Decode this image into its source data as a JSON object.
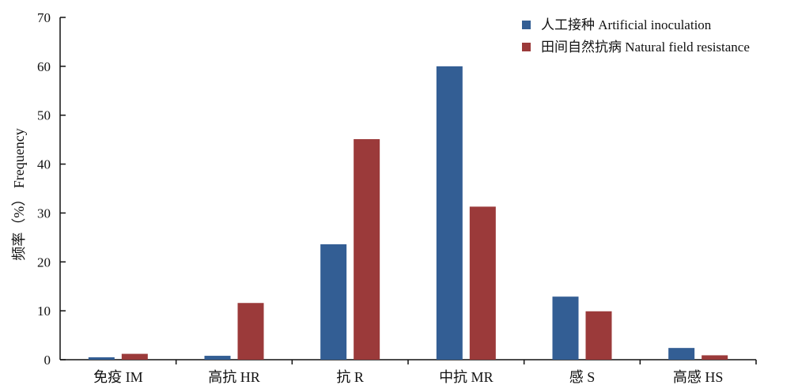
{
  "chart_data": {
    "type": "bar",
    "categories": [
      "免疫 IM",
      "高抗 HR",
      "抗 R",
      "中抗 MR",
      "感 S",
      "高感 HS"
    ],
    "series": [
      {
        "name": "人工接种 Artificial inoculation",
        "color": "#335e94",
        "values": [
          0.5,
          0.8,
          23.6,
          60.0,
          12.9,
          2.4
        ]
      },
      {
        "name": "田间自然抗病 Natural field resistance",
        "color": "#9b3a3a",
        "values": [
          1.2,
          11.6,
          45.1,
          31.3,
          9.9,
          0.9
        ]
      }
    ],
    "title": "",
    "xlabel": "",
    "ylabel": "频率（%） Frequency",
    "ylim": [
      0,
      70
    ],
    "yticks": [
      0,
      10,
      20,
      30,
      40,
      50,
      60,
      70
    ],
    "grid": false,
    "legend": "top-right"
  }
}
